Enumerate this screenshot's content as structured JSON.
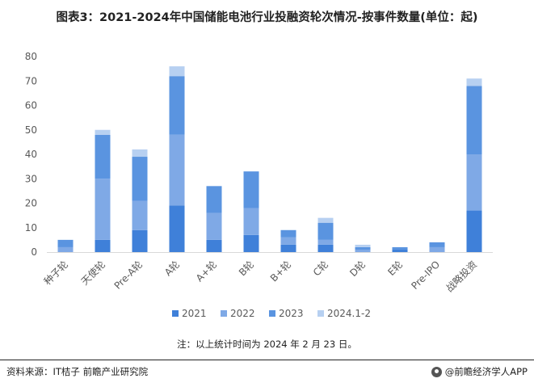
{
  "title": "图表3：2021-2024年中国储能电池行业投融资轮次情况-按事件数量(单位：起)",
  "note": "注：以上统计时间为 2024 年 2 月 23 日。",
  "source": "资料来源：IT桔子 前瞻产业研究院",
  "brand": "@前瞻经济学人APP",
  "colors": {
    "s2021": "#3f80d9",
    "s2022": "#7fa9e6",
    "s2023": "#5a94e0",
    "s2024": "#b7d0f1",
    "grid": "#e6e6e6",
    "axis_text": "#595959"
  },
  "chart_data": {
    "type": "bar",
    "stacked": true,
    "categories": [
      "种子轮",
      "天使轮",
      "Pre-A轮",
      "A轮",
      "A+轮",
      "B轮",
      "B+轮",
      "C轮",
      "D轮",
      "E轮",
      "Pre-IPO",
      "战略投资"
    ],
    "series": [
      {
        "name": "2021",
        "values": [
          0,
          5,
          9,
          19,
          5,
          7,
          3,
          3,
          0,
          1,
          0,
          17
        ]
      },
      {
        "name": "2022",
        "values": [
          2,
          25,
          12,
          29,
          11,
          11,
          3,
          2,
          1,
          0,
          2,
          23
        ]
      },
      {
        "name": "2023",
        "values": [
          3,
          18,
          18,
          24,
          11,
          15,
          3,
          7,
          1,
          1,
          2,
          28
        ]
      },
      {
        "name": "2024.1-2",
        "values": [
          0,
          2,
          3,
          4,
          0,
          0,
          0,
          2,
          1,
          0,
          0,
          3
        ]
      }
    ],
    "ylim": [
      0,
      80
    ],
    "yticks": [
      0,
      10,
      20,
      30,
      40,
      50,
      60,
      70,
      80
    ],
    "grid": false,
    "legend": "bottom"
  }
}
